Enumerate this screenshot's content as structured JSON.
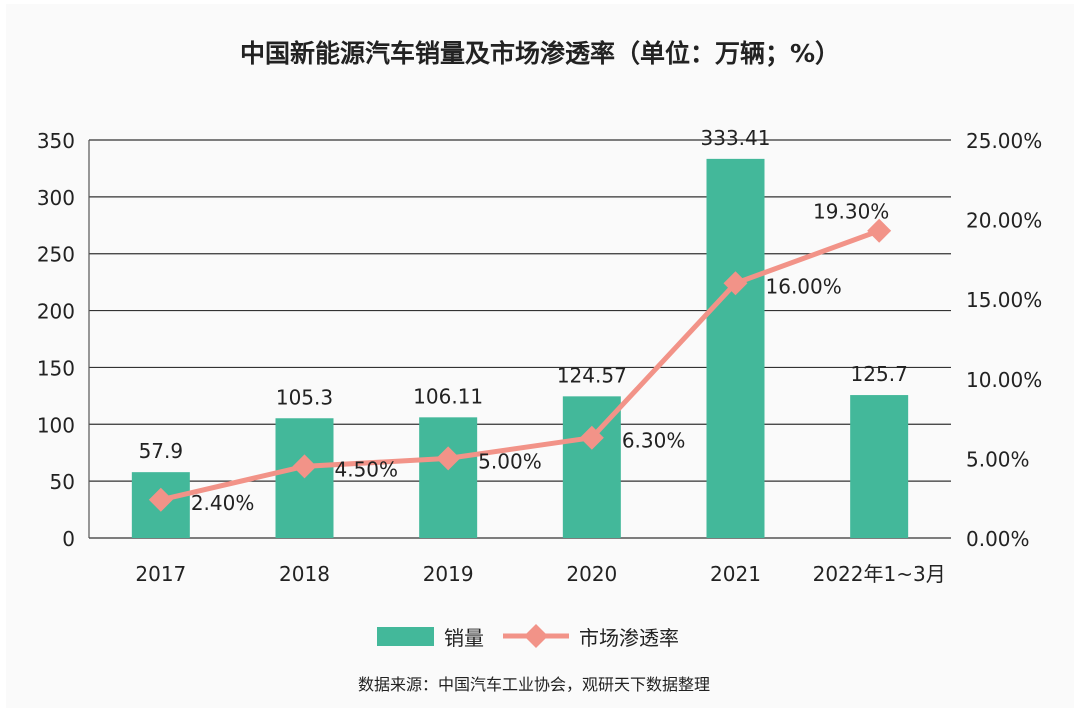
{
  "chart_data": {
    "type": "bar+line",
    "title": "中国新能源汽车销量及市场渗透率（单位：万辆；%）",
    "categories": [
      "2017",
      "2018",
      "2019",
      "2020",
      "2021",
      "2022年1~3月"
    ],
    "series": [
      {
        "name": "销量",
        "type": "bar",
        "axis": "left",
        "values": [
          57.9,
          105.3,
          106.11,
          124.57,
          333.41,
          125.7
        ],
        "labels": [
          "57.9",
          "105.3",
          "106.11",
          "124.57",
          "333.41",
          "125.7"
        ],
        "color": "#43b89a"
      },
      {
        "name": "市场渗透率",
        "type": "line",
        "axis": "right",
        "values": [
          2.4,
          4.5,
          5.0,
          6.3,
          16.0,
          19.3
        ],
        "labels": [
          "2.40%",
          "4.50%",
          "5.00%",
          "6.30%",
          "16.00%",
          "19.30%"
        ],
        "color": "#f29388",
        "marker": "diamond"
      }
    ],
    "left_axis": {
      "range": [
        0,
        350
      ],
      "ticks": [
        "0",
        "50",
        "100",
        "150",
        "200",
        "250",
        "300",
        "350"
      ]
    },
    "right_axis": {
      "range": [
        0,
        25
      ],
      "ticks": [
        "0.00%",
        "5.00%",
        "10.00%",
        "15.00%",
        "20.00%",
        "25.00%"
      ]
    },
    "grid": true,
    "legend_placement": "bottom"
  },
  "source": "数据来源：中国汽车工业协会，观研天下数据整理"
}
